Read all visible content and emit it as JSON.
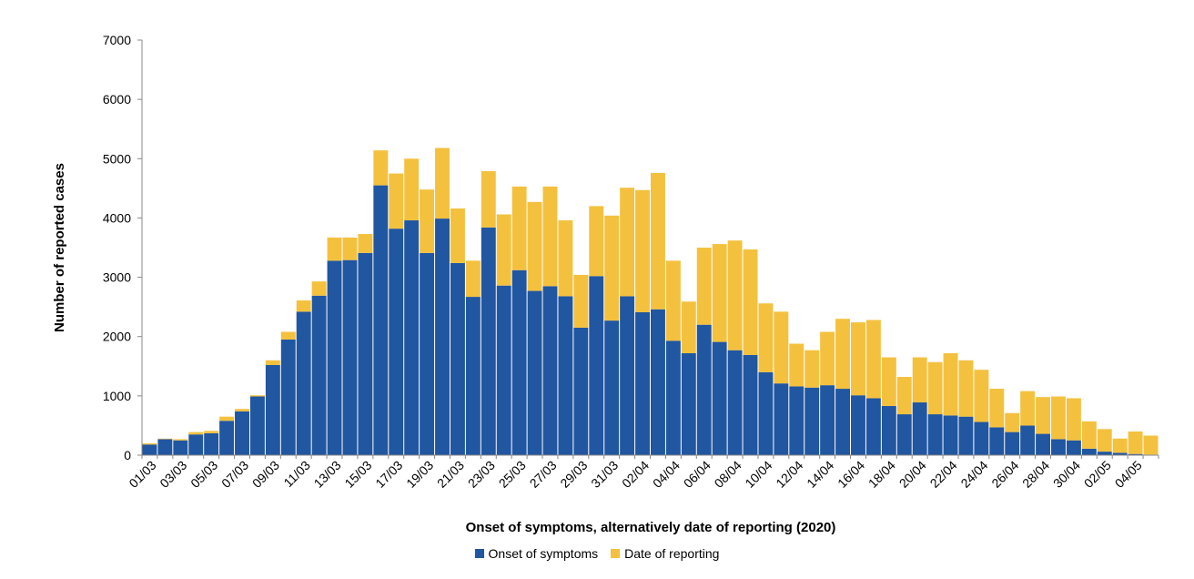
{
  "chart_data": {
    "type": "bar",
    "stacked": true,
    "xlabel": "Onset of symptoms, alternatively date of reporting (2020)",
    "ylabel": "Number of reported cases",
    "ylim": [
      0,
      7000
    ],
    "yticks": [
      0,
      1000,
      2000,
      3000,
      4000,
      5000,
      6000,
      7000
    ],
    "categories": [
      "01/03",
      "02/03",
      "03/03",
      "04/03",
      "05/03",
      "06/03",
      "07/03",
      "08/03",
      "09/03",
      "10/03",
      "11/03",
      "12/03",
      "13/03",
      "14/03",
      "15/03",
      "16/03",
      "17/03",
      "18/03",
      "19/03",
      "20/03",
      "21/03",
      "22/03",
      "23/03",
      "24/03",
      "25/03",
      "26/03",
      "27/03",
      "28/03",
      "29/03",
      "30/03",
      "31/03",
      "01/04",
      "02/04",
      "03/04",
      "04/04",
      "05/04",
      "06/04",
      "07/04",
      "08/04",
      "09/04",
      "10/04",
      "11/04",
      "12/04",
      "13/04",
      "14/04",
      "15/04",
      "16/04",
      "17/04",
      "18/04",
      "19/04",
      "20/04",
      "21/04",
      "22/04",
      "23/04",
      "24/04",
      "25/04",
      "26/04",
      "27/04",
      "28/04",
      "29/04",
      "30/04",
      "01/05",
      "02/05",
      "03/05",
      "04/05",
      "05/05"
    ],
    "tick_labels": [
      "01/03",
      "03/03",
      "05/03",
      "07/03",
      "09/03",
      "11/03",
      "13/03",
      "15/03",
      "17/03",
      "19/03",
      "21/03",
      "23/03",
      "25/03",
      "27/03",
      "29/03",
      "31/03",
      "02/04",
      "04/04",
      "06/04",
      "08/04",
      "10/04",
      "12/04",
      "14/04",
      "16/04",
      "18/04",
      "20/04",
      "22/04",
      "24/04",
      "26/04",
      "28/04",
      "30/04",
      "02/05",
      "04/05"
    ],
    "series": [
      {
        "name": "Onset of symptoms",
        "color": "#2156a0",
        "values": [
          180,
          270,
          250,
          350,
          370,
          580,
          740,
          990,
          1520,
          1950,
          2420,
          2690,
          3280,
          3290,
          3410,
          4550,
          3820,
          3960,
          3410,
          3990,
          3240,
          2670,
          3840,
          2860,
          3120,
          2770,
          2850,
          2680,
          2150,
          3020,
          2270,
          2680,
          2410,
          2460,
          1930,
          1720,
          2200,
          1910,
          1770,
          1690,
          1400,
          1210,
          1160,
          1140,
          1180,
          1120,
          1010,
          960,
          830,
          690,
          890,
          690,
          670,
          650,
          560,
          470,
          390,
          500,
          360,
          270,
          250,
          110,
          60,
          40,
          20,
          10
        ]
      },
      {
        "name": "Date of reporting",
        "color": "#f4c13f",
        "values": [
          20,
          10,
          20,
          40,
          40,
          70,
          40,
          20,
          80,
          130,
          190,
          240,
          390,
          380,
          320,
          590,
          930,
          1040,
          1070,
          1190,
          920,
          610,
          950,
          1200,
          1410,
          1500,
          1680,
          1280,
          890,
          1180,
          1770,
          1830,
          2060,
          2300,
          1350,
          870,
          1300,
          1650,
          1850,
          1780,
          1160,
          1210,
          720,
          630,
          900,
          1180,
          1230,
          1320,
          820,
          630,
          760,
          880,
          1050,
          950,
          880,
          650,
          320,
          580,
          620,
          720,
          710,
          460,
          380,
          240,
          380,
          320
        ]
      }
    ]
  }
}
